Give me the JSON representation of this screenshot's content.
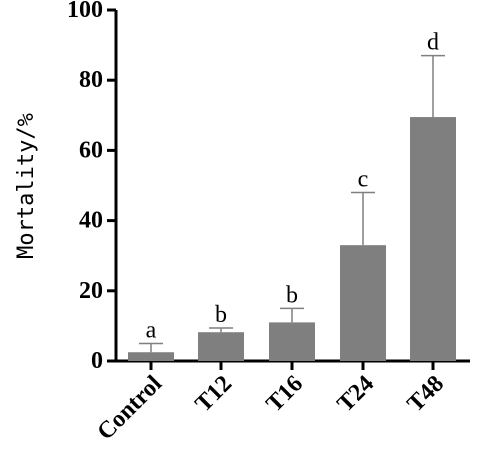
{
  "chart_data": {
    "type": "bar",
    "title": "",
    "xlabel": "",
    "ylabel": "Mortality/%",
    "ylim": [
      0,
      100
    ],
    "yticks": [
      0,
      20,
      40,
      60,
      80,
      100
    ],
    "categories": [
      "Control",
      "T12",
      "T16",
      "T24",
      "T48"
    ],
    "values": [
      2.5,
      8.2,
      11.0,
      33.0,
      69.5
    ],
    "errors": [
      2.5,
      1.2,
      4.0,
      15.0,
      17.5
    ],
    "significance": [
      "a",
      "b",
      "b",
      "c",
      "d"
    ],
    "bar_color": "#7f7f7f",
    "grid": false
  }
}
